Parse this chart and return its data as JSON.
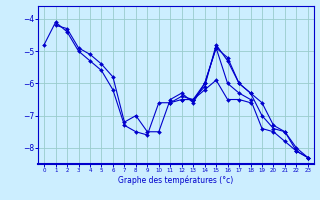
{
  "background_color": "#cceeff",
  "grid_color": "#99cccc",
  "line_color": "#0000cc",
  "xlabel": "Graphe des températures (°c)",
  "xlim": [
    -0.5,
    23.5
  ],
  "ylim": [
    -8.5,
    -3.6
  ],
  "yticks": [
    -8,
    -7,
    -6,
    -5,
    -4
  ],
  "xticks": [
    0,
    1,
    2,
    3,
    4,
    5,
    6,
    7,
    8,
    9,
    10,
    11,
    12,
    13,
    14,
    15,
    16,
    17,
    18,
    19,
    20,
    21,
    22,
    23
  ],
  "series": [
    [
      -4.8,
      -4.1,
      -4.4,
      -5.0,
      -5.3,
      -5.6,
      -6.2,
      -7.3,
      -7.5,
      -7.6,
      -6.6,
      -6.6,
      -6.5,
      -6.5,
      -6.2,
      -5.9,
      -6.5,
      -6.5,
      -6.6,
      null,
      null,
      null,
      null,
      null
    ],
    [
      null,
      -4.2,
      -4.3,
      -4.9,
      -5.1,
      -5.4,
      -5.8,
      -7.2,
      -7.0,
      -7.5,
      -7.5,
      -6.5,
      -6.3,
      -6.6,
      -6.0,
      -4.9,
      -6.0,
      -6.3,
      -6.5,
      -7.4,
      -7.5,
      -7.8,
      -8.1,
      -8.3
    ],
    [
      null,
      null,
      null,
      null,
      null,
      null,
      null,
      null,
      null,
      null,
      null,
      -6.6,
      -6.4,
      -6.5,
      -6.0,
      -4.9,
      -5.2,
      -6.0,
      -6.3,
      -7.0,
      -7.4,
      -7.5,
      -8.1,
      -8.3
    ],
    [
      null,
      null,
      null,
      null,
      null,
      null,
      null,
      null,
      null,
      null,
      null,
      null,
      -6.5,
      -6.5,
      -6.1,
      -4.8,
      -5.3,
      -6.0,
      -6.3,
      -6.6,
      -7.3,
      -7.5,
      -8.0,
      -8.3
    ]
  ]
}
